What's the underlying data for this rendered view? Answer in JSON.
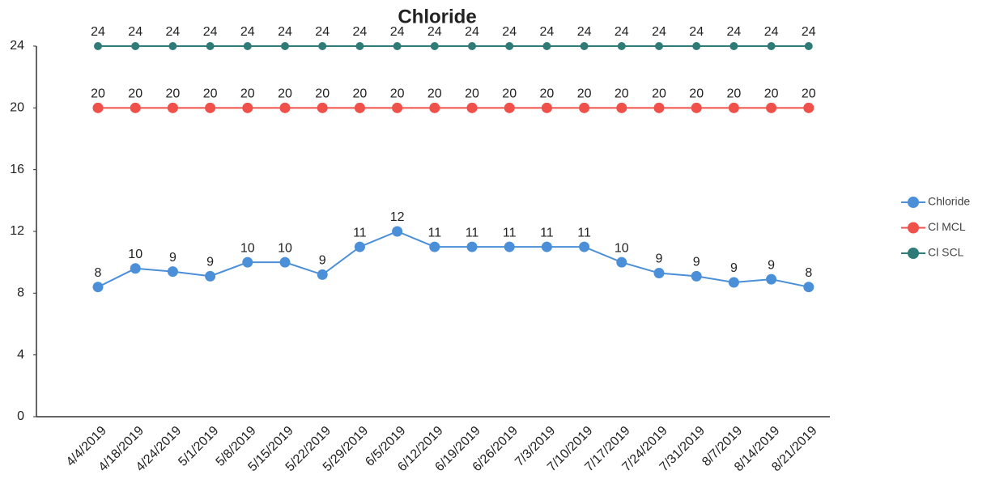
{
  "chart_data": {
    "type": "line",
    "title": "Chloride",
    "categories": [
      "4/4/2019",
      "4/18/2019",
      "4/24/2019",
      "5/1/2019",
      "5/8/2019",
      "5/15/2019",
      "5/22/2019",
      "5/29/2019",
      "6/5/2019",
      "6/12/2019",
      "6/19/2019",
      "6/26/2019",
      "7/3/2019",
      "7/10/2019",
      "7/17/2019",
      "7/24/2019",
      "7/31/2019",
      "8/7/2019",
      "8/14/2019",
      "8/21/2019"
    ],
    "series": [
      {
        "name": "Chloride",
        "color": "#4a8fd8",
        "values": [
          8.4,
          9.6,
          9.4,
          9.1,
          10,
          10,
          9.2,
          11,
          12,
          11,
          11,
          11,
          11,
          11,
          10,
          9.3,
          9.1,
          8.7,
          8.9,
          8.4
        ],
        "value_labels": [
          "8",
          "10",
          "9",
          "9",
          "10",
          "10",
          "9",
          "11",
          "12",
          "11",
          "11",
          "11",
          "11",
          "11",
          "10",
          "9",
          "9",
          "9",
          "9",
          "8"
        ]
      },
      {
        "name": "Cl MCL",
        "color": "#f0504a",
        "values": [
          20,
          20,
          20,
          20,
          20,
          20,
          20,
          20,
          20,
          20,
          20,
          20,
          20,
          20,
          20,
          20,
          20,
          20,
          20,
          20
        ]
      },
      {
        "name": "Cl SCL",
        "color": "#2f7b78",
        "values": [
          24,
          24,
          24,
          24,
          24,
          24,
          24,
          24,
          24,
          24,
          24,
          24,
          24,
          24,
          24,
          24,
          24,
          24,
          24,
          24
        ]
      }
    ],
    "ylim": [
      0,
      24
    ],
    "yticks": [
      0,
      4,
      8,
      12,
      16,
      20,
      24
    ],
    "grid": false,
    "legend": "right"
  }
}
